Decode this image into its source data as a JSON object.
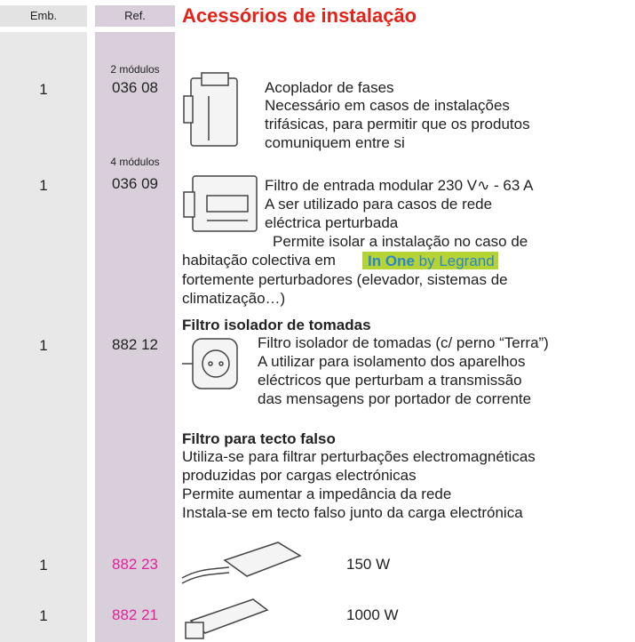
{
  "header": {
    "emb": "Emb.",
    "ref": "Ref.",
    "title": "Acessórios de instalação"
  },
  "items": [
    {
      "emb": "1",
      "modules": "2 módulos",
      "ref": "036 08",
      "lines": [
        "Acoplador de fases",
        "Necessário em casos de instalações",
        "trifásicas, para permitir que os produtos",
        "comuniquem entre si"
      ]
    },
    {
      "emb": "1",
      "modules": "4 módulos",
      "ref": "036 09",
      "lines": [
        "Filtro de entrada modular 230 V∿ - 63 A",
        "A ser utilizado para casos de rede",
        "eléctrica perturbada",
        "Permite isolar a instalação no caso de",
        "habitação colectiva em",
        "fortemente perturbadores (elevador, sistemas de",
        "climatização…)"
      ],
      "badge": {
        "brand": "In One",
        "by": "by Legrand"
      }
    },
    {
      "heading": "Filtro isolador de tomadas",
      "emb": "1",
      "ref": "882 12",
      "lines": [
        "Filtro isolador de tomadas (c/ perno “Terra”)",
        "A utilizar para isolamento dos aparelhos",
        "eléctricos que perturbam a transmissão",
        "das mensagens por portador de corrente"
      ]
    },
    {
      "heading": "Filtro para tecto falso",
      "lines": [
        "Utiliza-se para filtrar perturbações electromagnéticas",
        "produzidas por cargas electrónicas",
        "Permite aumentar a impedância da rede",
        "Instala-se em tecto falso junto da carga electrónica"
      ]
    },
    {
      "emb": "1",
      "ref": "882 23",
      "power": "150 W"
    },
    {
      "emb": "1",
      "ref": "882 21",
      "power": "1000 W"
    }
  ]
}
